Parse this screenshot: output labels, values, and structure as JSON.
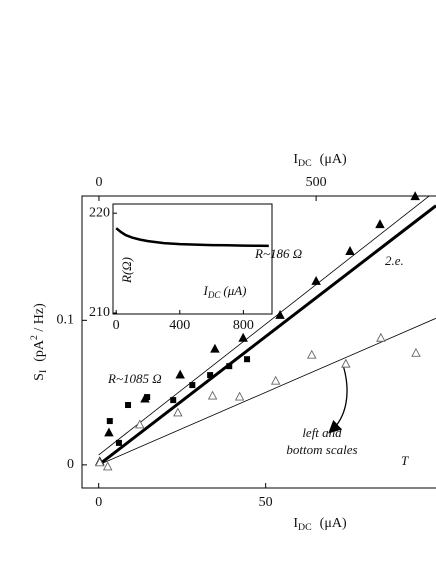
{
  "chart_data": [
    {
      "type": "scatter",
      "x_label": {
        "main": "I",
        "sub": "DC",
        "unit": "(μA)"
      },
      "x2_label": {
        "main": "I",
        "sub": "DC",
        "unit": "(μA)"
      },
      "y_label": {
        "main": "S",
        "sub": "I",
        "unit": "(pA",
        "sup": "2",
        "tail": " / Hz)"
      },
      "xlim": [
        -5,
        101
      ],
      "xticks": [
        0,
        50
      ],
      "x2lim": [
        -39,
        776
      ],
      "x2ticks": [
        0,
        500
      ],
      "ylim": [
        -0.016,
        0.186
      ],
      "yticks": [
        0,
        0.1
      ],
      "series": [
        {
          "marker": "square",
          "axis": "x2",
          "color": "#000",
          "x": [
            46,
            25,
            67,
            111,
            215,
            171,
            256,
            300,
            341
          ],
          "y": [
            0.0152,
            0.0303,
            0.0414,
            0.0469,
            0.0552,
            0.0448,
            0.0621,
            0.0683,
            0.0731
          ]
        },
        {
          "marker": "triangle",
          "axis": "x2",
          "color": "#000",
          "x": [
            2,
            23,
            106,
            187,
            267,
            332,
            417,
            500,
            578,
            647,
            728
          ],
          "y": [
            0.0021,
            0.0221,
            0.0455,
            0.0621,
            0.08,
            0.0876,
            0.1034,
            0.1269,
            0.1476,
            0.1662,
            0.1855
          ]
        },
        {
          "marker": "open-triangle",
          "axis": "x",
          "color": "#666",
          "x": [
            0.3,
            2.7,
            12.3,
            23.7,
            34.1,
            42.2,
            53.0,
            63.8,
            74.0,
            84.5,
            95.0
          ],
          "y": [
            0.0014,
            -0.0014,
            0.0276,
            0.0359,
            0.0476,
            0.0469,
            0.0579,
            0.0759,
            0.0697,
            0.0876,
            0.0772
          ]
        }
      ],
      "fits": [
        {
          "x": [
            0,
            101
          ],
          "y": [
            0.0069,
            0.1897
          ],
          "width": 0.8
        },
        {
          "x": [
            0,
            101
          ],
          "y": [
            0,
            0.1793
          ],
          "width": 3
        },
        {
          "x": [
            0,
            101
          ],
          "y": [
            0,
            0.1014
          ],
          "width": 0.8
        }
      ],
      "annotations": [
        "R~186  Ω",
        "2.e.",
        "R~1085  Ω",
        "left and",
        "bottom scales",
        "T"
      ]
    },
    {
      "type": "line",
      "x_label": {
        "main": "I",
        "sub": "DC",
        "unit": "(μA)"
      },
      "y_label": "R(Ω)",
      "xlim": [
        -20,
        980
      ],
      "xticks": [
        0,
        400,
        800
      ],
      "ylim": [
        209.9,
        220.92
      ],
      "yticks": [
        220,
        210
      ],
      "x": [
        0,
        30,
        60,
        100,
        150,
        200,
        250,
        300,
        400,
        500,
        600,
        700,
        800,
        900,
        960
      ],
      "y": [
        218.5,
        218.1,
        217.8,
        217.55,
        217.35,
        217.2,
        217.1,
        217.0,
        216.9,
        216.85,
        216.8,
        216.78,
        216.75,
        216.73,
        216.72
      ]
    }
  ]
}
